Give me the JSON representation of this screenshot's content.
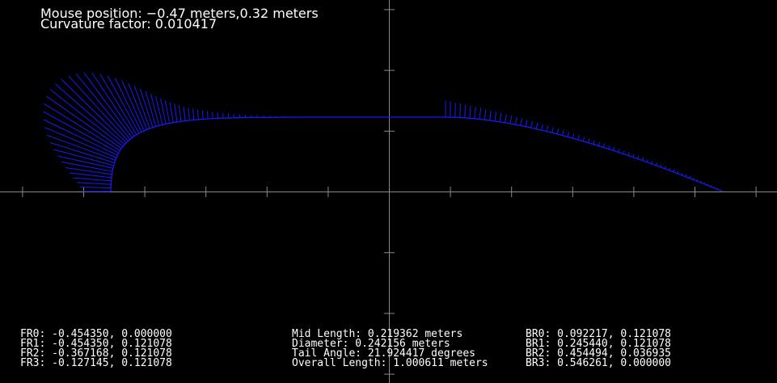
{
  "overlay": {
    "mouse_position": "Mouse position: −0.47 meters,0.32 meters",
    "curvature_factor": "Curvature factor: 0.010417"
  },
  "front_points": [
    "FR0: -0.454350, 0.000000",
    "FR1: -0.454350, 0.121078",
    "FR2: -0.367168, 0.121078",
    "FR3: -0.127145, 0.121078"
  ],
  "middle_info": [
    "Mid Length: 0.219362 meters",
    "Diameter: 0.242156 meters",
    "Tail Angle: 21.924417 degrees",
    "Overall Length: 1.000611 meters"
  ],
  "back_points": [
    "BR0: 0.092217, 0.121078",
    "BR1: 0.245440, 0.121078",
    "BR2: 0.454494, 0.036935",
    "BR3: 0.546261, 0.000000"
  ]
}
